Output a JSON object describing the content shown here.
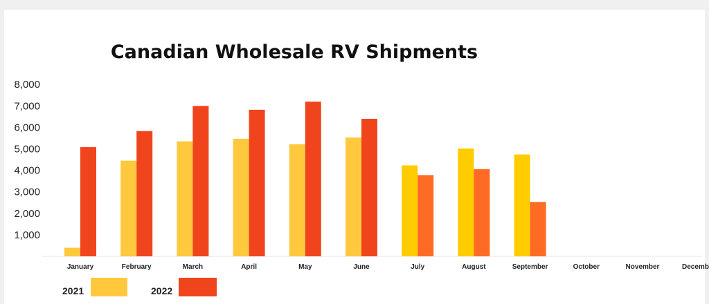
{
  "chart_data": {
    "type": "bar",
    "title": "Canadian Wholesale RV Shipments",
    "xlabel": "",
    "ylabel": "",
    "ylim": [
      0,
      8000
    ],
    "yticks": [
      1000,
      2000,
      3000,
      4000,
      5000,
      6000,
      7000,
      8000
    ],
    "ytick_labels": [
      "1,000",
      "2,000",
      "3,000",
      "4,000",
      "5,000",
      "6,000",
      "7,000",
      "8,000"
    ],
    "categories": [
      "January",
      "February",
      "March",
      "April",
      "May",
      "June",
      "July",
      "August",
      "September",
      "October",
      "November",
      "December"
    ],
    "series": [
      {
        "name": "2021",
        "values": [
          400,
          4450,
          5350,
          5470,
          5220,
          5530,
          4230,
          5020,
          4740,
          null,
          null,
          null
        ]
      },
      {
        "name": "2022",
        "values": [
          5080,
          5830,
          7000,
          6820,
          7200,
          6400,
          3780,
          4060,
          2530,
          null,
          null,
          null
        ]
      }
    ],
    "grid": false,
    "legend_position": "bottom-left"
  },
  "colors": {
    "series_2021": "#ffc83d",
    "series_2022": "#f0451c",
    "series_2021_late": "#ffcc00",
    "series_2022_late": "#ff6a25"
  }
}
